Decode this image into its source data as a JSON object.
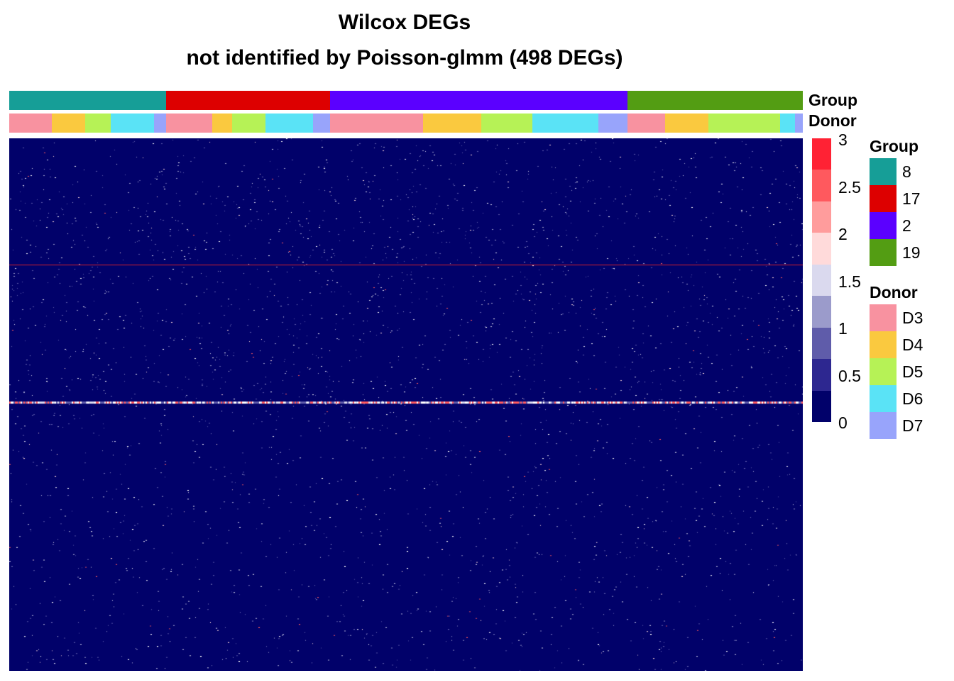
{
  "chart_data": {
    "type": "heatmap",
    "title": "Wilcox DEGs",
    "subtitle": "not identified by Poisson-glmm (498 DEGs)",
    "annotations": [
      {
        "name": "Group",
        "categories": [
          "8",
          "17",
          "2",
          "19"
        ],
        "colors": [
          "#169E97",
          "#DD0000",
          "#5B00FF",
          "#539D13"
        ],
        "column_order": [
          "8",
          "17",
          "2",
          "19"
        ],
        "column_fractions": [
          0.198,
          0.206,
          0.375,
          0.221
        ]
      },
      {
        "name": "Donor",
        "categories": [
          "D3",
          "D4",
          "D5",
          "D6",
          "D7"
        ],
        "colors": [
          "#F892A0",
          "#FAC93F",
          "#B6F256",
          "#5AE3F6",
          "#98A4FB"
        ],
        "column_order": [
          "D3",
          "D4",
          "D5",
          "D6",
          "D7",
          "D3",
          "D4",
          "D5",
          "D6",
          "D7",
          "D3",
          "D4",
          "D5",
          "D6",
          "D7",
          "D3",
          "D4",
          "D5",
          "D6",
          "D7"
        ],
        "column_fractions": [
          0.054,
          0.042,
          0.032,
          0.055,
          0.015,
          0.058,
          0.025,
          0.042,
          0.06,
          0.022,
          0.117,
          0.073,
          0.065,
          0.083,
          0.037,
          0.047,
          0.055,
          0.09,
          0.019,
          0.01
        ]
      }
    ],
    "color_scale": {
      "min": 0,
      "max": 3,
      "ticks": [
        "3",
        "2.5",
        "2",
        "1.5",
        "1",
        "0.5",
        "0"
      ],
      "colors": [
        "#FF2234",
        "#FF595E",
        "#FF9C9C",
        "#FFDADA",
        "#DAD9EE",
        "#9B9BCB",
        "#5F5CAA",
        "#2D2790",
        "#01016A"
      ]
    },
    "rows": 498,
    "background_value": 0,
    "highlighted_rows": [
      {
        "row_fraction": 0.237,
        "value": "high",
        "style": "thin_line"
      },
      {
        "row_fraction": 0.494,
        "value": "high",
        "style": "dotted_line"
      }
    ],
    "legends": [
      {
        "title": "Group",
        "items": [
          "8",
          "17",
          "2",
          "19"
        ],
        "colors": [
          "#169E97",
          "#DD0000",
          "#5B00FF",
          "#539D13"
        ]
      },
      {
        "title": "Donor",
        "items": [
          "D3",
          "D4",
          "D5",
          "D6",
          "D7"
        ],
        "colors": [
          "#F892A0",
          "#FAC93F",
          "#B6F256",
          "#5AE3F6",
          "#98A4FB"
        ]
      }
    ],
    "annotation_labels": [
      "Group",
      "Donor"
    ]
  }
}
